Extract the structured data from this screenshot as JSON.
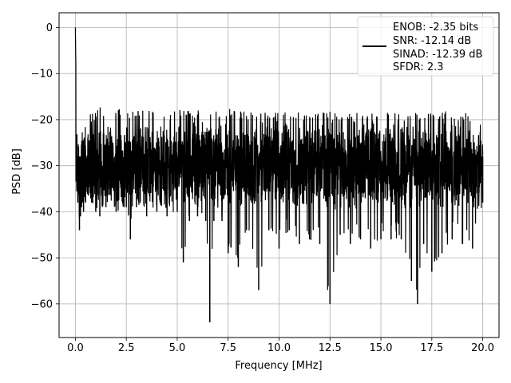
{
  "chart_data": {
    "type": "line",
    "xlabel": "Frequency [MHz]",
    "ylabel": "PSD [dB]",
    "xlim": [
      -0.8,
      20.8
    ],
    "ylim": [
      -67.3,
      3.2
    ],
    "xticks": [
      0.0,
      2.5,
      5.0,
      7.5,
      10.0,
      12.5,
      15.0,
      17.5,
      20.0
    ],
    "xtick_labels": [
      "0.0",
      "2.5",
      "5.0",
      "7.5",
      "10.0",
      "12.5",
      "15.0",
      "17.5",
      "20.0"
    ],
    "yticks": [
      0,
      -10,
      -20,
      -30,
      -40,
      -50,
      -60
    ],
    "ytick_labels": [
      "0",
      "−10",
      "−20",
      "−30",
      "−40",
      "−50",
      "−60"
    ],
    "grid": true,
    "legend_position": "top-right",
    "series": [
      {
        "color": "#000000",
        "legend_lines": [
          "ENOB: -2.35 bits",
          "SNR: -12.14 dB",
          "SINAD: -12.39 dB",
          "SFDR: 2.3"
        ],
        "x": [
          0.0,
          0.02,
          0.05,
          0.08,
          0.12,
          0.16,
          0.2,
          0.25,
          0.3,
          0.35,
          0.4,
          0.5,
          0.6,
          0.8,
          1.0,
          1.2,
          1.5,
          2.0,
          2.5,
          2.7,
          3.0,
          3.5,
          4.0,
          4.5,
          5.0,
          5.3,
          5.6,
          6.0,
          6.4,
          6.6,
          6.8,
          7.2,
          7.5,
          8.0,
          8.4,
          9.0,
          9.5,
          10.0,
          10.5,
          11.0,
          11.5,
          12.0,
          12.5,
          13.0,
          13.5,
          14.0,
          14.5,
          15.0,
          15.5,
          16.0,
          16.5,
          16.8,
          17.1,
          17.5,
          18.0,
          18.5,
          19.0,
          19.5,
          20.0
        ],
        "y_upper": [
          0,
          -7.5,
          -12,
          -14,
          -13,
          -15,
          -16,
          -17,
          -18,
          -19,
          -20,
          -19,
          -18,
          -18.5,
          -18,
          -17,
          -18,
          -18,
          -17,
          -18,
          -18,
          -18,
          -17.5,
          -18,
          -18,
          -17,
          -17.5,
          -18,
          -18,
          -17.5,
          -18,
          -18,
          -17.5,
          -18,
          -18,
          -18.5,
          -18,
          -18.5,
          -18,
          -18,
          -18.5,
          -18,
          -18,
          -18.5,
          -18.5,
          -18,
          -18.5,
          -18,
          -18.5,
          -18.5,
          -18,
          -18,
          -18.5,
          -18.5,
          -18,
          -18.5,
          -18.5,
          -18.5,
          -19
        ],
        "y_lower": [
          -24,
          -32,
          -36,
          -42,
          -38,
          -36,
          -44,
          -41,
          -39,
          -38,
          -40,
          -38,
          -36,
          -38,
          -40,
          -41,
          -39,
          -40,
          -39,
          -46,
          -39,
          -41,
          -40,
          -41,
          -40,
          -51,
          -42,
          -41,
          -42,
          -64,
          -42,
          -42,
          -49,
          -52,
          -44,
          -57,
          -44,
          -48,
          -44,
          -47,
          -46,
          -47,
          -60,
          -45,
          -47,
          -46,
          -48,
          -46,
          -46,
          -46,
          -55,
          -60,
          -47,
          -53,
          -49,
          -46,
          -47,
          -48,
          -38
        ],
        "mean": -28
      }
    ]
  }
}
